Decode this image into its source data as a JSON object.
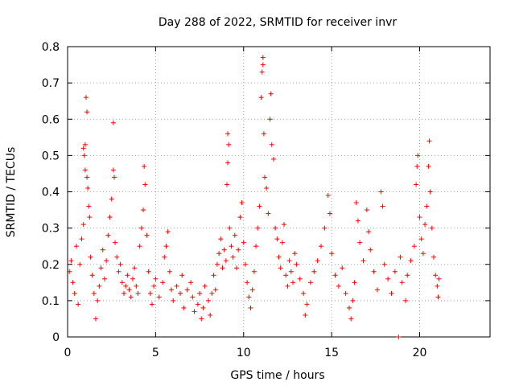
{
  "chart_data": {
    "type": "scatter",
    "title": "Day 288 of 2022, SRMTID for receiver invr",
    "xlabel": "GPS time / hours",
    "ylabel": "SRMTID / TECUs",
    "xlim": [
      0,
      24
    ],
    "ylim": [
      0,
      0.8
    ],
    "x_ticks": [
      0,
      5,
      10,
      15,
      20
    ],
    "x_tick_labels": [
      "0",
      "5",
      "10",
      "15",
      "20"
    ],
    "y_ticks": [
      0,
      0.1,
      0.2,
      0.3,
      0.4,
      0.5,
      0.6,
      0.7,
      0.8
    ],
    "y_tick_labels": [
      "0",
      "0.1",
      "0.2",
      "0.3",
      "0.4",
      "0.5",
      "0.6",
      "0.7",
      "0.8"
    ],
    "grid": true,
    "marker": "plus",
    "series": [
      {
        "name": "SRMTID",
        "color": "#ff0000",
        "points": [
          [
            0.1,
            0.18
          ],
          [
            0.2,
            0.21
          ],
          [
            0.3,
            0.15
          ],
          [
            0.4,
            0.12
          ],
          [
            0.5,
            0.25
          ],
          [
            0.6,
            0.09
          ],
          [
            0.7,
            0.2
          ],
          [
            0.8,
            0.27
          ],
          [
            0.9,
            0.31
          ],
          [
            0.9,
            0.52
          ],
          [
            0.95,
            0.5
          ],
          [
            1.0,
            0.53
          ],
          [
            1.0,
            0.46
          ],
          [
            1.05,
            0.66
          ],
          [
            1.1,
            0.62
          ],
          [
            1.1,
            0.44
          ],
          [
            1.15,
            0.41
          ],
          [
            1.2,
            0.36
          ],
          [
            1.25,
            0.33
          ],
          [
            1.3,
            0.22
          ],
          [
            1.4,
            0.17
          ],
          [
            1.5,
            0.12
          ],
          [
            1.6,
            0.05
          ],
          [
            1.7,
            0.1
          ],
          [
            1.8,
            0.14
          ],
          [
            1.9,
            0.19
          ],
          [
            2.0,
            0.24
          ],
          [
            2.1,
            0.16
          ],
          [
            2.2,
            0.21
          ],
          [
            2.3,
            0.28
          ],
          [
            2.4,
            0.33
          ],
          [
            2.5,
            0.38
          ],
          [
            2.6,
            0.46
          ],
          [
            2.65,
            0.44
          ],
          [
            2.6,
            0.59
          ],
          [
            2.7,
            0.26
          ],
          [
            2.8,
            0.22
          ],
          [
            2.9,
            0.18
          ],
          [
            3.0,
            0.2
          ],
          [
            3.1,
            0.15
          ],
          [
            3.2,
            0.12
          ],
          [
            3.3,
            0.14
          ],
          [
            3.4,
            0.17
          ],
          [
            3.5,
            0.13
          ],
          [
            3.6,
            0.11
          ],
          [
            3.7,
            0.16
          ],
          [
            3.8,
            0.19
          ],
          [
            3.9,
            0.14
          ],
          [
            4.0,
            0.12
          ],
          [
            4.1,
            0.25
          ],
          [
            4.2,
            0.3
          ],
          [
            4.3,
            0.35
          ],
          [
            4.35,
            0.47
          ],
          [
            4.4,
            0.42
          ],
          [
            4.5,
            0.28
          ],
          [
            4.6,
            0.18
          ],
          [
            4.7,
            0.12
          ],
          [
            4.8,
            0.09
          ],
          [
            4.9,
            0.14
          ],
          [
            5.0,
            0.16
          ],
          [
            5.2,
            0.11
          ],
          [
            5.4,
            0.15
          ],
          [
            5.5,
            0.22
          ],
          [
            5.6,
            0.25
          ],
          [
            5.7,
            0.29
          ],
          [
            5.8,
            0.18
          ],
          [
            5.9,
            0.13
          ],
          [
            6.0,
            0.1
          ],
          [
            6.2,
            0.14
          ],
          [
            6.4,
            0.12
          ],
          [
            6.5,
            0.17
          ],
          [
            6.6,
            0.08
          ],
          [
            6.8,
            0.13
          ],
          [
            7.0,
            0.15
          ],
          [
            7.1,
            0.11
          ],
          [
            7.2,
            0.07
          ],
          [
            7.4,
            0.09
          ],
          [
            7.5,
            0.12
          ],
          [
            7.6,
            0.05
          ],
          [
            7.7,
            0.08
          ],
          [
            7.8,
            0.14
          ],
          [
            8.0,
            0.1
          ],
          [
            8.1,
            0.06
          ],
          [
            8.2,
            0.12
          ],
          [
            8.3,
            0.17
          ],
          [
            8.4,
            0.13
          ],
          [
            8.5,
            0.2
          ],
          [
            8.6,
            0.23
          ],
          [
            8.7,
            0.27
          ],
          [
            8.8,
            0.19
          ],
          [
            8.9,
            0.24
          ],
          [
            9.0,
            0.21
          ],
          [
            9.05,
            0.42
          ],
          [
            9.1,
            0.48
          ],
          [
            9.1,
            0.56
          ],
          [
            9.15,
            0.53
          ],
          [
            9.2,
            0.3
          ],
          [
            9.3,
            0.25
          ],
          [
            9.4,
            0.22
          ],
          [
            9.5,
            0.28
          ],
          [
            9.6,
            0.19
          ],
          [
            9.7,
            0.24
          ],
          [
            9.8,
            0.33
          ],
          [
            9.9,
            0.37
          ],
          [
            10.0,
            0.26
          ],
          [
            10.1,
            0.2
          ],
          [
            10.2,
            0.15
          ],
          [
            10.3,
            0.11
          ],
          [
            10.4,
            0.08
          ],
          [
            10.5,
            0.13
          ],
          [
            10.6,
            0.18
          ],
          [
            10.7,
            0.25
          ],
          [
            10.8,
            0.3
          ],
          [
            10.9,
            0.36
          ],
          [
            11.0,
            0.66
          ],
          [
            11.05,
            0.73
          ],
          [
            11.1,
            0.77
          ],
          [
            11.1,
            0.75
          ],
          [
            11.15,
            0.56
          ],
          [
            11.2,
            0.44
          ],
          [
            11.3,
            0.41
          ],
          [
            11.4,
            0.34
          ],
          [
            11.5,
            0.6
          ],
          [
            11.55,
            0.67
          ],
          [
            11.6,
            0.53
          ],
          [
            11.7,
            0.49
          ],
          [
            11.8,
            0.3
          ],
          [
            11.9,
            0.27
          ],
          [
            12.0,
            0.22
          ],
          [
            12.1,
            0.19
          ],
          [
            12.2,
            0.26
          ],
          [
            12.3,
            0.31
          ],
          [
            12.4,
            0.17
          ],
          [
            12.5,
            0.14
          ],
          [
            12.6,
            0.21
          ],
          [
            12.7,
            0.18
          ],
          [
            12.8,
            0.15
          ],
          [
            12.9,
            0.23
          ],
          [
            13.0,
            0.2
          ],
          [
            13.2,
            0.16
          ],
          [
            13.4,
            0.12
          ],
          [
            13.5,
            0.06
          ],
          [
            13.6,
            0.09
          ],
          [
            13.8,
            0.15
          ],
          [
            14.0,
            0.18
          ],
          [
            14.2,
            0.21
          ],
          [
            14.4,
            0.25
          ],
          [
            14.6,
            0.3
          ],
          [
            14.8,
            0.39
          ],
          [
            14.9,
            0.34
          ],
          [
            15.0,
            0.23
          ],
          [
            15.2,
            0.17
          ],
          [
            15.4,
            0.14
          ],
          [
            15.6,
            0.19
          ],
          [
            15.8,
            0.12
          ],
          [
            16.0,
            0.08
          ],
          [
            16.1,
            0.05
          ],
          [
            16.2,
            0.1
          ],
          [
            16.3,
            0.15
          ],
          [
            16.4,
            0.37
          ],
          [
            16.5,
            0.32
          ],
          [
            16.6,
            0.26
          ],
          [
            16.8,
            0.21
          ],
          [
            17.0,
            0.35
          ],
          [
            17.1,
            0.29
          ],
          [
            17.2,
            0.24
          ],
          [
            17.4,
            0.18
          ],
          [
            17.6,
            0.13
          ],
          [
            17.8,
            0.4
          ],
          [
            17.9,
            0.36
          ],
          [
            18.0,
            0.2
          ],
          [
            18.2,
            0.16
          ],
          [
            18.4,
            0.12
          ],
          [
            18.6,
            0.18
          ],
          [
            18.8,
            0.0
          ],
          [
            18.9,
            0.22
          ],
          [
            19.0,
            0.15
          ],
          [
            19.2,
            0.1
          ],
          [
            19.3,
            0.17
          ],
          [
            19.5,
            0.21
          ],
          [
            19.7,
            0.25
          ],
          [
            19.8,
            0.42
          ],
          [
            19.85,
            0.47
          ],
          [
            19.9,
            0.5
          ],
          [
            20.0,
            0.33
          ],
          [
            20.1,
            0.27
          ],
          [
            20.2,
            0.23
          ],
          [
            20.3,
            0.31
          ],
          [
            20.4,
            0.36
          ],
          [
            20.5,
            0.47
          ],
          [
            20.55,
            0.54
          ],
          [
            20.6,
            0.4
          ],
          [
            20.7,
            0.3
          ],
          [
            20.8,
            0.22
          ],
          [
            20.9,
            0.17
          ],
          [
            21.0,
            0.14
          ],
          [
            21.05,
            0.11
          ],
          [
            21.1,
            0.16
          ]
        ]
      }
    ]
  }
}
